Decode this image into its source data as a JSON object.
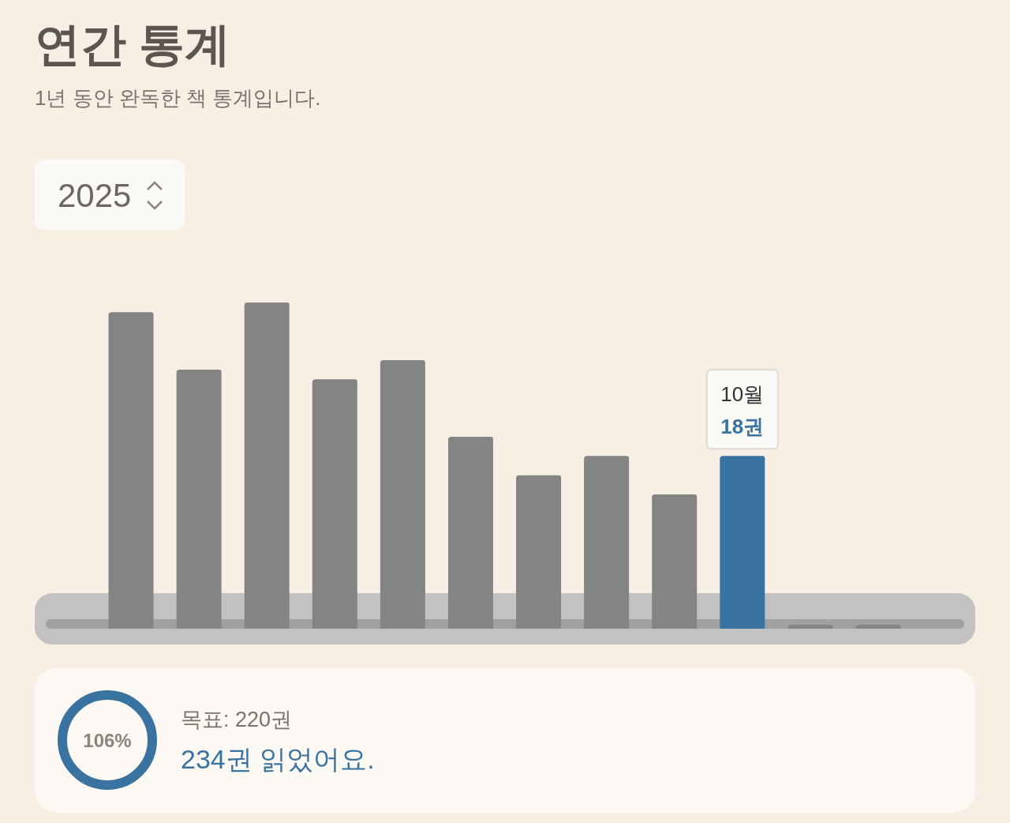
{
  "chart_data": [
    {
      "type": "bar",
      "title": "연간 통계",
      "subtitle": "1년 동안 완독한 책 통계입니다.",
      "annotations": [
        "2025"
      ],
      "categories": [
        null,
        null,
        null,
        null,
        null,
        null,
        null,
        null,
        null,
        "10월",
        null,
        null
      ],
      "values": [
        33,
        27,
        34,
        26,
        28,
        20,
        16,
        18,
        14,
        18,
        0.4,
        0.4
      ],
      "colors": [
        "#848484",
        "#848484",
        "#848484",
        "#848484",
        "#848484",
        "#848484",
        "#848484",
        "#848484",
        "#848484",
        "#3b73a0",
        "#848484",
        "#848484"
      ],
      "value_labels": [
        null,
        null,
        null,
        null,
        null,
        null,
        null,
        null,
        null,
        "18권",
        null,
        null
      ],
      "tick_labels": false
    },
    {
      "type": "other",
      "annotations": [
        "106%",
        "목표: 220권",
        "234권 읽었어요."
      ]
    }
  ]
}
